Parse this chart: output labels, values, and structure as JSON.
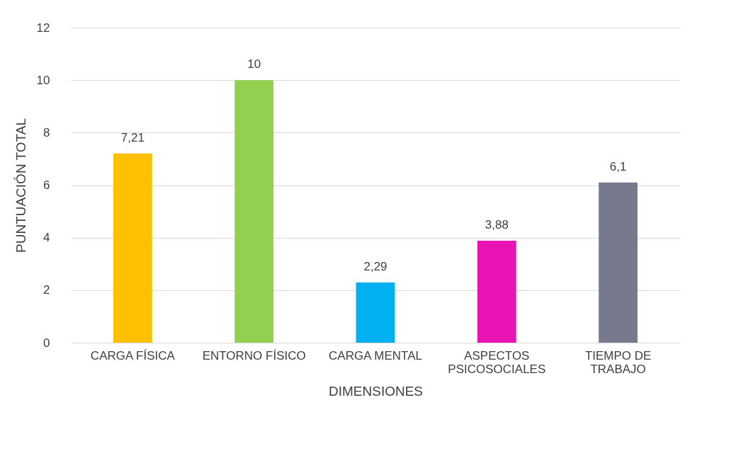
{
  "chart_data": {
    "type": "bar",
    "xlabel": "DIMENSIONES",
    "ylabel": "PUNTUACIÓN TOTAL",
    "categories": [
      "CARGA FÍSICA",
      "ENTORNO FÍSICO",
      "CARGA MENTAL",
      "ASPECTOS PSICOSOCIALES",
      "TIEMPO DE TRABAJO"
    ],
    "values": [
      7.21,
      10,
      2.29,
      3.88,
      6.1
    ],
    "colors": [
      "#ffc000",
      "#92d050",
      "#00b0f0",
      "#e815b4",
      "#767a8c"
    ],
    "value_labels": [
      "7,21",
      "10",
      "2,29",
      "3,88",
      "6,1"
    ],
    "ylim": [
      0,
      12
    ],
    "yticks": [
      0,
      2,
      4,
      6,
      8,
      10,
      12
    ],
    "grid": "y"
  }
}
